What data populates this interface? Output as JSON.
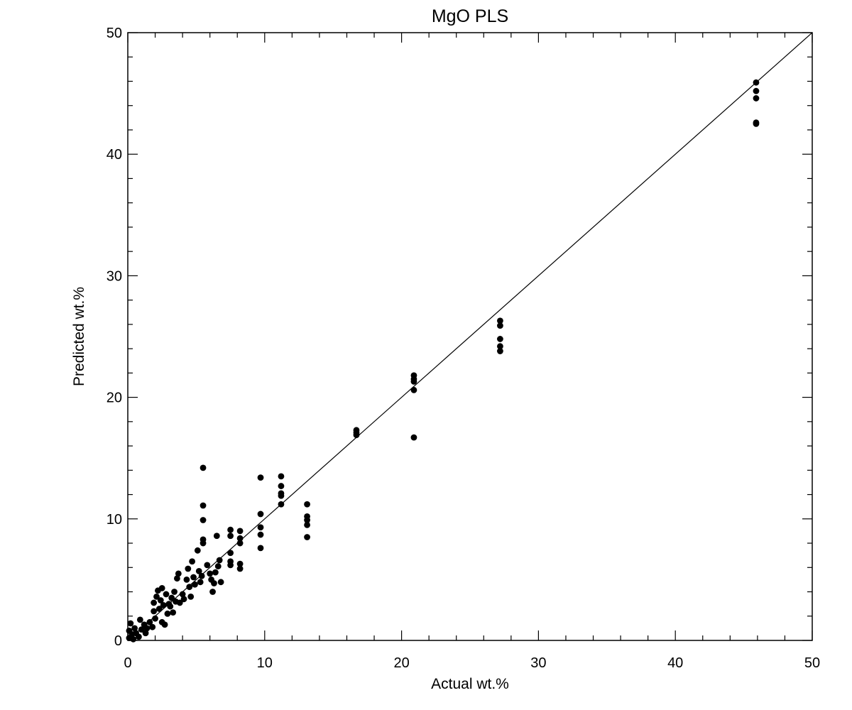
{
  "chart_data": {
    "type": "scatter",
    "title": "MgO PLS",
    "xlabel": "Actual wt.%",
    "ylabel": "Predicted wt.%",
    "xlim": [
      0,
      50
    ],
    "ylim": [
      0,
      50
    ],
    "x_ticks": [
      "0",
      "10",
      "20",
      "30",
      "40",
      "50"
    ],
    "y_ticks": [
      "0",
      "10",
      "20",
      "30",
      "40",
      "50"
    ],
    "grid": false,
    "legend": "none",
    "reference_line": {
      "from": [
        0,
        0
      ],
      "to": [
        50,
        50
      ]
    },
    "marker_color": "#000000",
    "series": [
      {
        "points": [
          [
            0.1,
            0.2
          ],
          [
            0.1,
            0.8
          ],
          [
            0.2,
            1.4
          ],
          [
            0.3,
            0.5
          ],
          [
            0.4,
            0.1
          ],
          [
            0.5,
            1.0
          ],
          [
            0.6,
            0.6
          ],
          [
            0.8,
            0.3
          ],
          [
            0.9,
            1.7
          ],
          [
            1.0,
            0.9
          ],
          [
            1.2,
            1.3
          ],
          [
            1.3,
            0.6
          ],
          [
            1.4,
            1.0
          ],
          [
            1.6,
            1.5
          ],
          [
            1.8,
            1.1
          ],
          [
            1.9,
            2.4
          ],
          [
            1.9,
            3.1
          ],
          [
            2.0,
            1.8
          ],
          [
            2.1,
            3.6
          ],
          [
            2.2,
            4.1
          ],
          [
            2.3,
            2.6
          ],
          [
            2.4,
            3.3
          ],
          [
            2.5,
            1.5
          ],
          [
            2.5,
            4.3
          ],
          [
            2.6,
            2.9
          ],
          [
            2.7,
            1.3
          ],
          [
            2.8,
            3.8
          ],
          [
            2.9,
            2.2
          ],
          [
            3.0,
            3.0
          ],
          [
            3.1,
            2.8
          ],
          [
            3.2,
            3.5
          ],
          [
            3.3,
            2.3
          ],
          [
            3.4,
            4.0
          ],
          [
            3.5,
            3.2
          ],
          [
            3.6,
            5.1
          ],
          [
            3.7,
            5.5
          ],
          [
            3.8,
            3.1
          ],
          [
            4.0,
            3.8
          ],
          [
            4.1,
            3.4
          ],
          [
            4.3,
            5.0
          ],
          [
            4.4,
            5.9
          ],
          [
            4.5,
            4.4
          ],
          [
            4.6,
            3.6
          ],
          [
            4.7,
            6.5
          ],
          [
            4.8,
            5.2
          ],
          [
            4.9,
            4.6
          ],
          [
            5.1,
            7.4
          ],
          [
            5.2,
            5.7
          ],
          [
            5.3,
            4.8
          ],
          [
            5.4,
            5.3
          ],
          [
            5.5,
            8.0
          ],
          [
            5.5,
            8.3
          ],
          [
            5.5,
            9.9
          ],
          [
            5.5,
            11.1
          ],
          [
            5.5,
            14.2
          ],
          [
            5.8,
            6.2
          ],
          [
            6.0,
            5.5
          ],
          [
            6.1,
            5.0
          ],
          [
            6.2,
            4.0
          ],
          [
            6.3,
            4.7
          ],
          [
            6.4,
            5.6
          ],
          [
            6.5,
            8.6
          ],
          [
            6.6,
            6.1
          ],
          [
            6.7,
            6.6
          ],
          [
            6.8,
            4.8
          ],
          [
            7.5,
            6.2
          ],
          [
            7.5,
            6.5
          ],
          [
            7.5,
            7.2
          ],
          [
            7.5,
            8.6
          ],
          [
            7.5,
            9.1
          ],
          [
            8.2,
            5.9
          ],
          [
            8.2,
            6.3
          ],
          [
            8.2,
            8.0
          ],
          [
            8.2,
            8.4
          ],
          [
            8.2,
            9.0
          ],
          [
            9.7,
            7.6
          ],
          [
            9.7,
            8.7
          ],
          [
            9.7,
            9.3
          ],
          [
            9.7,
            10.4
          ],
          [
            9.7,
            13.4
          ],
          [
            11.2,
            11.2
          ],
          [
            11.2,
            11.9
          ],
          [
            11.2,
            12.1
          ],
          [
            11.2,
            12.7
          ],
          [
            11.2,
            13.5
          ],
          [
            13.1,
            8.5
          ],
          [
            13.1,
            9.5
          ],
          [
            13.1,
            9.9
          ],
          [
            13.1,
            10.2
          ],
          [
            13.1,
            11.2
          ],
          [
            16.7,
            16.9
          ],
          [
            16.7,
            17.1
          ],
          [
            16.7,
            17.3
          ],
          [
            20.9,
            16.7
          ],
          [
            20.9,
            20.6
          ],
          [
            20.9,
            21.3
          ],
          [
            20.9,
            21.5
          ],
          [
            20.9,
            21.8
          ],
          [
            27.2,
            23.8
          ],
          [
            27.2,
            24.2
          ],
          [
            27.2,
            24.8
          ],
          [
            27.2,
            25.9
          ],
          [
            27.2,
            26.3
          ],
          [
            45.9,
            42.5
          ],
          [
            45.9,
            42.6
          ],
          [
            45.9,
            44.6
          ],
          [
            45.9,
            45.2
          ],
          [
            45.9,
            45.9
          ]
        ]
      }
    ]
  }
}
